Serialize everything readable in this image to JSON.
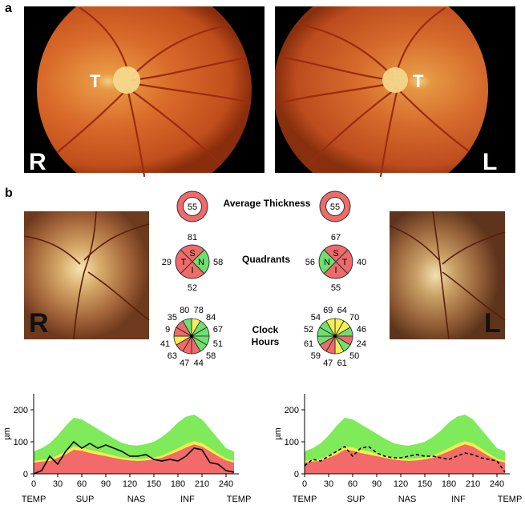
{
  "panel_a": {
    "label": "a",
    "left": {
      "eye": "R",
      "marker": "T"
    },
    "right": {
      "eye": "L",
      "marker": "T"
    }
  },
  "panel_b": {
    "label": "b",
    "left_photo": {
      "eye": "R"
    },
    "right_photo": {
      "eye": "L"
    },
    "average_thickness": {
      "label": "Average Thickness",
      "right_eye": "55",
      "left_eye": "55"
    },
    "quadrants": {
      "label": "Quadrants",
      "right_eye": {
        "S": "81",
        "T": "29",
        "N": "58",
        "I": "52",
        "colors": {
          "S": "#ef6a6a",
          "T": "#ef6a6a",
          "N": "#6fe06f",
          "I": "#ef6a6a"
        }
      },
      "left_eye": {
        "S": "67",
        "N": "56",
        "T": "40",
        "I": "55",
        "colors": {
          "S": "#ef6a6a",
          "T": "#ef6a6a",
          "N": "#6fe06f",
          "I": "#ef6a6a"
        }
      }
    },
    "clock_hours": {
      "label_line1": "Clock",
      "label_line2": "Hours",
      "right_eye": [
        "78",
        "84",
        "67",
        "51",
        "58",
        "44",
        "47",
        "63",
        "41",
        "9",
        "35",
        "80"
      ],
      "left_eye": [
        "64",
        "70",
        "46",
        "24",
        "50",
        "61",
        "47",
        "59",
        "61",
        "52",
        "54",
        "69"
      ],
      "right_eye_colors": [
        "#f4ef55",
        "#6fe06f",
        "#6fe06f",
        "#6fe06f",
        "#6fe06f",
        "#ef6a6a",
        "#ef6a6a",
        "#ef6a6a",
        "#f4ef55",
        "#ef6a6a",
        "#ef6a6a",
        "#6fe06f"
      ],
      "left_eye_colors": [
        "#f4ef55",
        "#f4ef55",
        "#6fe06f",
        "#ef6a6a",
        "#6fe06f",
        "#f4ef55",
        "#ef6a6a",
        "#ef6a6a",
        "#6fe06f",
        "#6fe06f",
        "#6fe06f",
        "#f4ef55"
      ]
    }
  },
  "chart_data": [
    {
      "type": "area",
      "eye": "R",
      "ylabel": "µm",
      "ylim": [
        0,
        250
      ],
      "xlim": [
        0,
        256
      ],
      "yticks": [
        0,
        100,
        200
      ],
      "xticks": [
        0,
        30,
        60,
        90,
        120,
        150,
        180,
        210,
        240
      ],
      "region_labels": [
        "TEMP",
        "SUP",
        "NAS",
        "INF",
        "TEMP"
      ],
      "x": [
        0,
        10,
        20,
        30,
        40,
        50,
        60,
        70,
        80,
        90,
        100,
        110,
        120,
        130,
        140,
        150,
        160,
        170,
        180,
        190,
        200,
        210,
        220,
        230,
        240,
        250
      ],
      "bands": {
        "red": [
          35,
          38,
          40,
          50,
          60,
          75,
          72,
          65,
          60,
          55,
          50,
          45,
          42,
          40,
          42,
          45,
          50,
          60,
          70,
          82,
          92,
          85,
          70,
          55,
          42,
          35
        ],
        "yellow": [
          40,
          44,
          46,
          58,
          70,
          85,
          82,
          75,
          70,
          63,
          57,
          51,
          48,
          46,
          48,
          51,
          57,
          68,
          80,
          93,
          102,
          96,
          80,
          63,
          48,
          40
        ],
        "green": [
          70,
          80,
          95,
          120,
          150,
          175,
          170,
          155,
          140,
          125,
          110,
          97,
          90,
          88,
          93,
          100,
          115,
          135,
          160,
          178,
          185,
          170,
          140,
          110,
          80,
          70
        ]
      },
      "series": [
        {
          "style": "solid",
          "values": [
            0,
            10,
            55,
            30,
            70,
            100,
            80,
            95,
            80,
            90,
            80,
            70,
            55,
            55,
            60,
            45,
            40,
            45,
            40,
            55,
            80,
            75,
            35,
            30,
            10,
            5
          ]
        }
      ]
    },
    {
      "type": "area",
      "eye": "L",
      "ylabel": "µm",
      "ylim": [
        0,
        250
      ],
      "xlim": [
        0,
        256
      ],
      "yticks": [
        0,
        100,
        200
      ],
      "xticks": [
        0,
        30,
        60,
        90,
        120,
        150,
        180,
        210,
        240
      ],
      "region_labels": [
        "TEMP",
        "SUP",
        "NAS",
        "INF",
        "TEMP"
      ],
      "x": [
        0,
        10,
        20,
        30,
        40,
        50,
        60,
        70,
        80,
        90,
        100,
        110,
        120,
        130,
        140,
        150,
        160,
        170,
        180,
        190,
        200,
        210,
        220,
        230,
        240,
        250
      ],
      "bands": {
        "red": [
          35,
          38,
          40,
          50,
          60,
          75,
          72,
          65,
          60,
          55,
          50,
          45,
          42,
          40,
          42,
          45,
          50,
          60,
          70,
          82,
          92,
          85,
          70,
          55,
          42,
          35
        ],
        "yellow": [
          40,
          44,
          46,
          58,
          70,
          85,
          82,
          75,
          70,
          63,
          57,
          51,
          48,
          46,
          48,
          51,
          57,
          68,
          80,
          93,
          102,
          96,
          80,
          63,
          48,
          40
        ],
        "green": [
          70,
          80,
          95,
          120,
          150,
          175,
          170,
          155,
          140,
          125,
          110,
          97,
          90,
          88,
          93,
          100,
          115,
          135,
          160,
          178,
          185,
          170,
          140,
          110,
          80,
          70
        ]
      },
      "series": [
        {
          "style": "dashed",
          "values": [
            25,
            45,
            40,
            55,
            70,
            85,
            55,
            80,
            85,
            65,
            55,
            50,
            50,
            55,
            60,
            55,
            55,
            50,
            45,
            55,
            65,
            60,
            50,
            45,
            40,
            5
          ]
        }
      ]
    }
  ]
}
